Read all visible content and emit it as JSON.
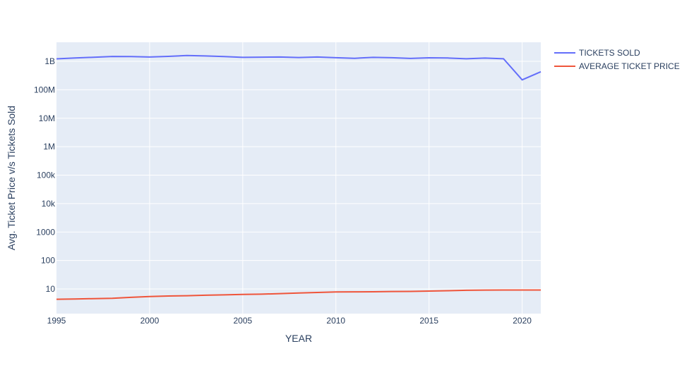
{
  "chart_data": {
    "type": "line",
    "title": "",
    "xlabel": "YEAR",
    "ylabel": "Avg. Ticket Price v/s Tickets Sold",
    "y_scale": "log",
    "xlim": [
      1995,
      2021
    ],
    "x_ticks": [
      1995,
      2000,
      2005,
      2010,
      2015,
      2020
    ],
    "y_ticks": [
      {
        "value": 10,
        "label": "10"
      },
      {
        "value": 100,
        "label": "100"
      },
      {
        "value": 1000,
        "label": "1000"
      },
      {
        "value": 10000,
        "label": "10k"
      },
      {
        "value": 100000,
        "label": "100k"
      },
      {
        "value": 1000000,
        "label": "1M"
      },
      {
        "value": 10000000,
        "label": "10M"
      },
      {
        "value": 100000000,
        "label": "100M"
      },
      {
        "value": 1000000000,
        "label": "1B"
      }
    ],
    "grid": true,
    "legend_position": "top-right",
    "plot_background": "#e5ecf6",
    "x": [
      1995,
      1996,
      1997,
      1998,
      1999,
      2000,
      2001,
      2002,
      2003,
      2004,
      2005,
      2006,
      2007,
      2008,
      2009,
      2010,
      2011,
      2012,
      2013,
      2014,
      2015,
      2016,
      2017,
      2018,
      2019,
      2020,
      2021
    ],
    "series": [
      {
        "name": "TICKETS SOLD",
        "color": "#636efa",
        "values": [
          1220000000,
          1310000000,
          1390000000,
          1480000000,
          1470000000,
          1420000000,
          1490000000,
          1600000000,
          1540000000,
          1470000000,
          1380000000,
          1400000000,
          1420000000,
          1360000000,
          1420000000,
          1340000000,
          1280000000,
          1380000000,
          1340000000,
          1260000000,
          1330000000,
          1310000000,
          1230000000,
          1300000000,
          1230000000,
          223000000,
          430000000
        ]
      },
      {
        "name": "AVERAGE TICKET PRICE",
        "color": "#ef553b",
        "values": [
          4.35,
          4.42,
          4.59,
          4.69,
          5.08,
          5.39,
          5.66,
          5.8,
          6.03,
          6.21,
          6.41,
          6.55,
          6.88,
          7.18,
          7.5,
          7.89,
          7.93,
          7.96,
          8.13,
          8.17,
          8.43,
          8.65,
          8.97,
          9.11,
          9.16,
          9.18,
          9.17
        ]
      }
    ]
  }
}
